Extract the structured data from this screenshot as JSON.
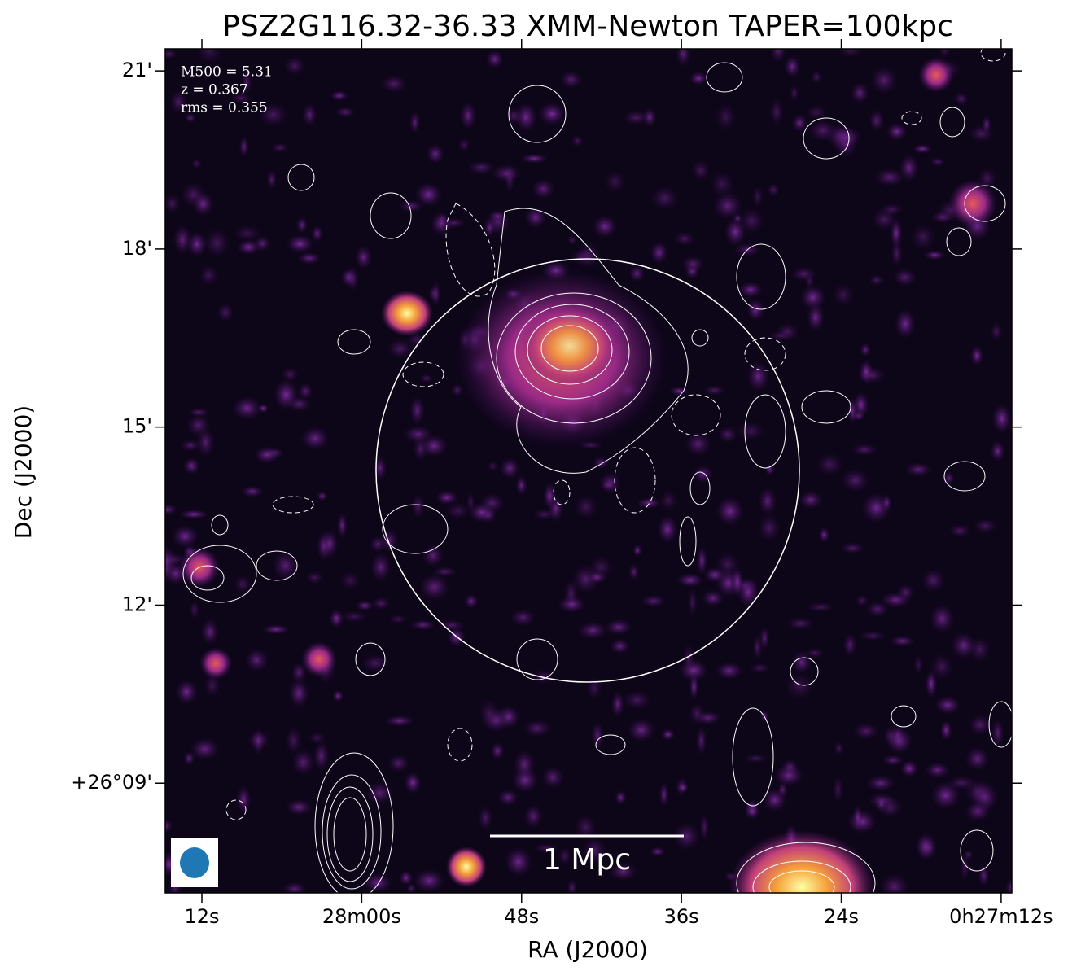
{
  "chart_data": {
    "type": "image",
    "title": "PSZ2G116.32-36.33 XMM-Newton TAPER=100kpc",
    "x_label": "RA (J2000)",
    "y_label": "Dec (J2000)",
    "xlim": [
      74.75,
      11.2
    ],
    "xticks": [
      {
        "value": 72,
        "label": "12s"
      },
      {
        "value": 60,
        "label": "28m00s"
      },
      {
        "value": 48,
        "label": "48s"
      },
      {
        "value": 36,
        "label": "36s"
      },
      {
        "value": 24,
        "label": "24s"
      },
      {
        "value": 12,
        "label": "0h27m12s"
      }
    ],
    "ylim": [
      26.1192,
      26.3562
    ],
    "yticks": [
      {
        "value": 26.35,
        "label": "21'"
      },
      {
        "value": 26.3,
        "label": "18'"
      },
      {
        "value": 26.25,
        "label": "15'"
      },
      {
        "value": 26.2,
        "label": "12'"
      },
      {
        "value": 26.15,
        "label": "+26°09'"
      }
    ],
    "annotations": [
      "M500 = 5.31",
      "z = 0.367",
      "rms = 0.355"
    ],
    "scale_bar_label": "1 Mpc"
  }
}
